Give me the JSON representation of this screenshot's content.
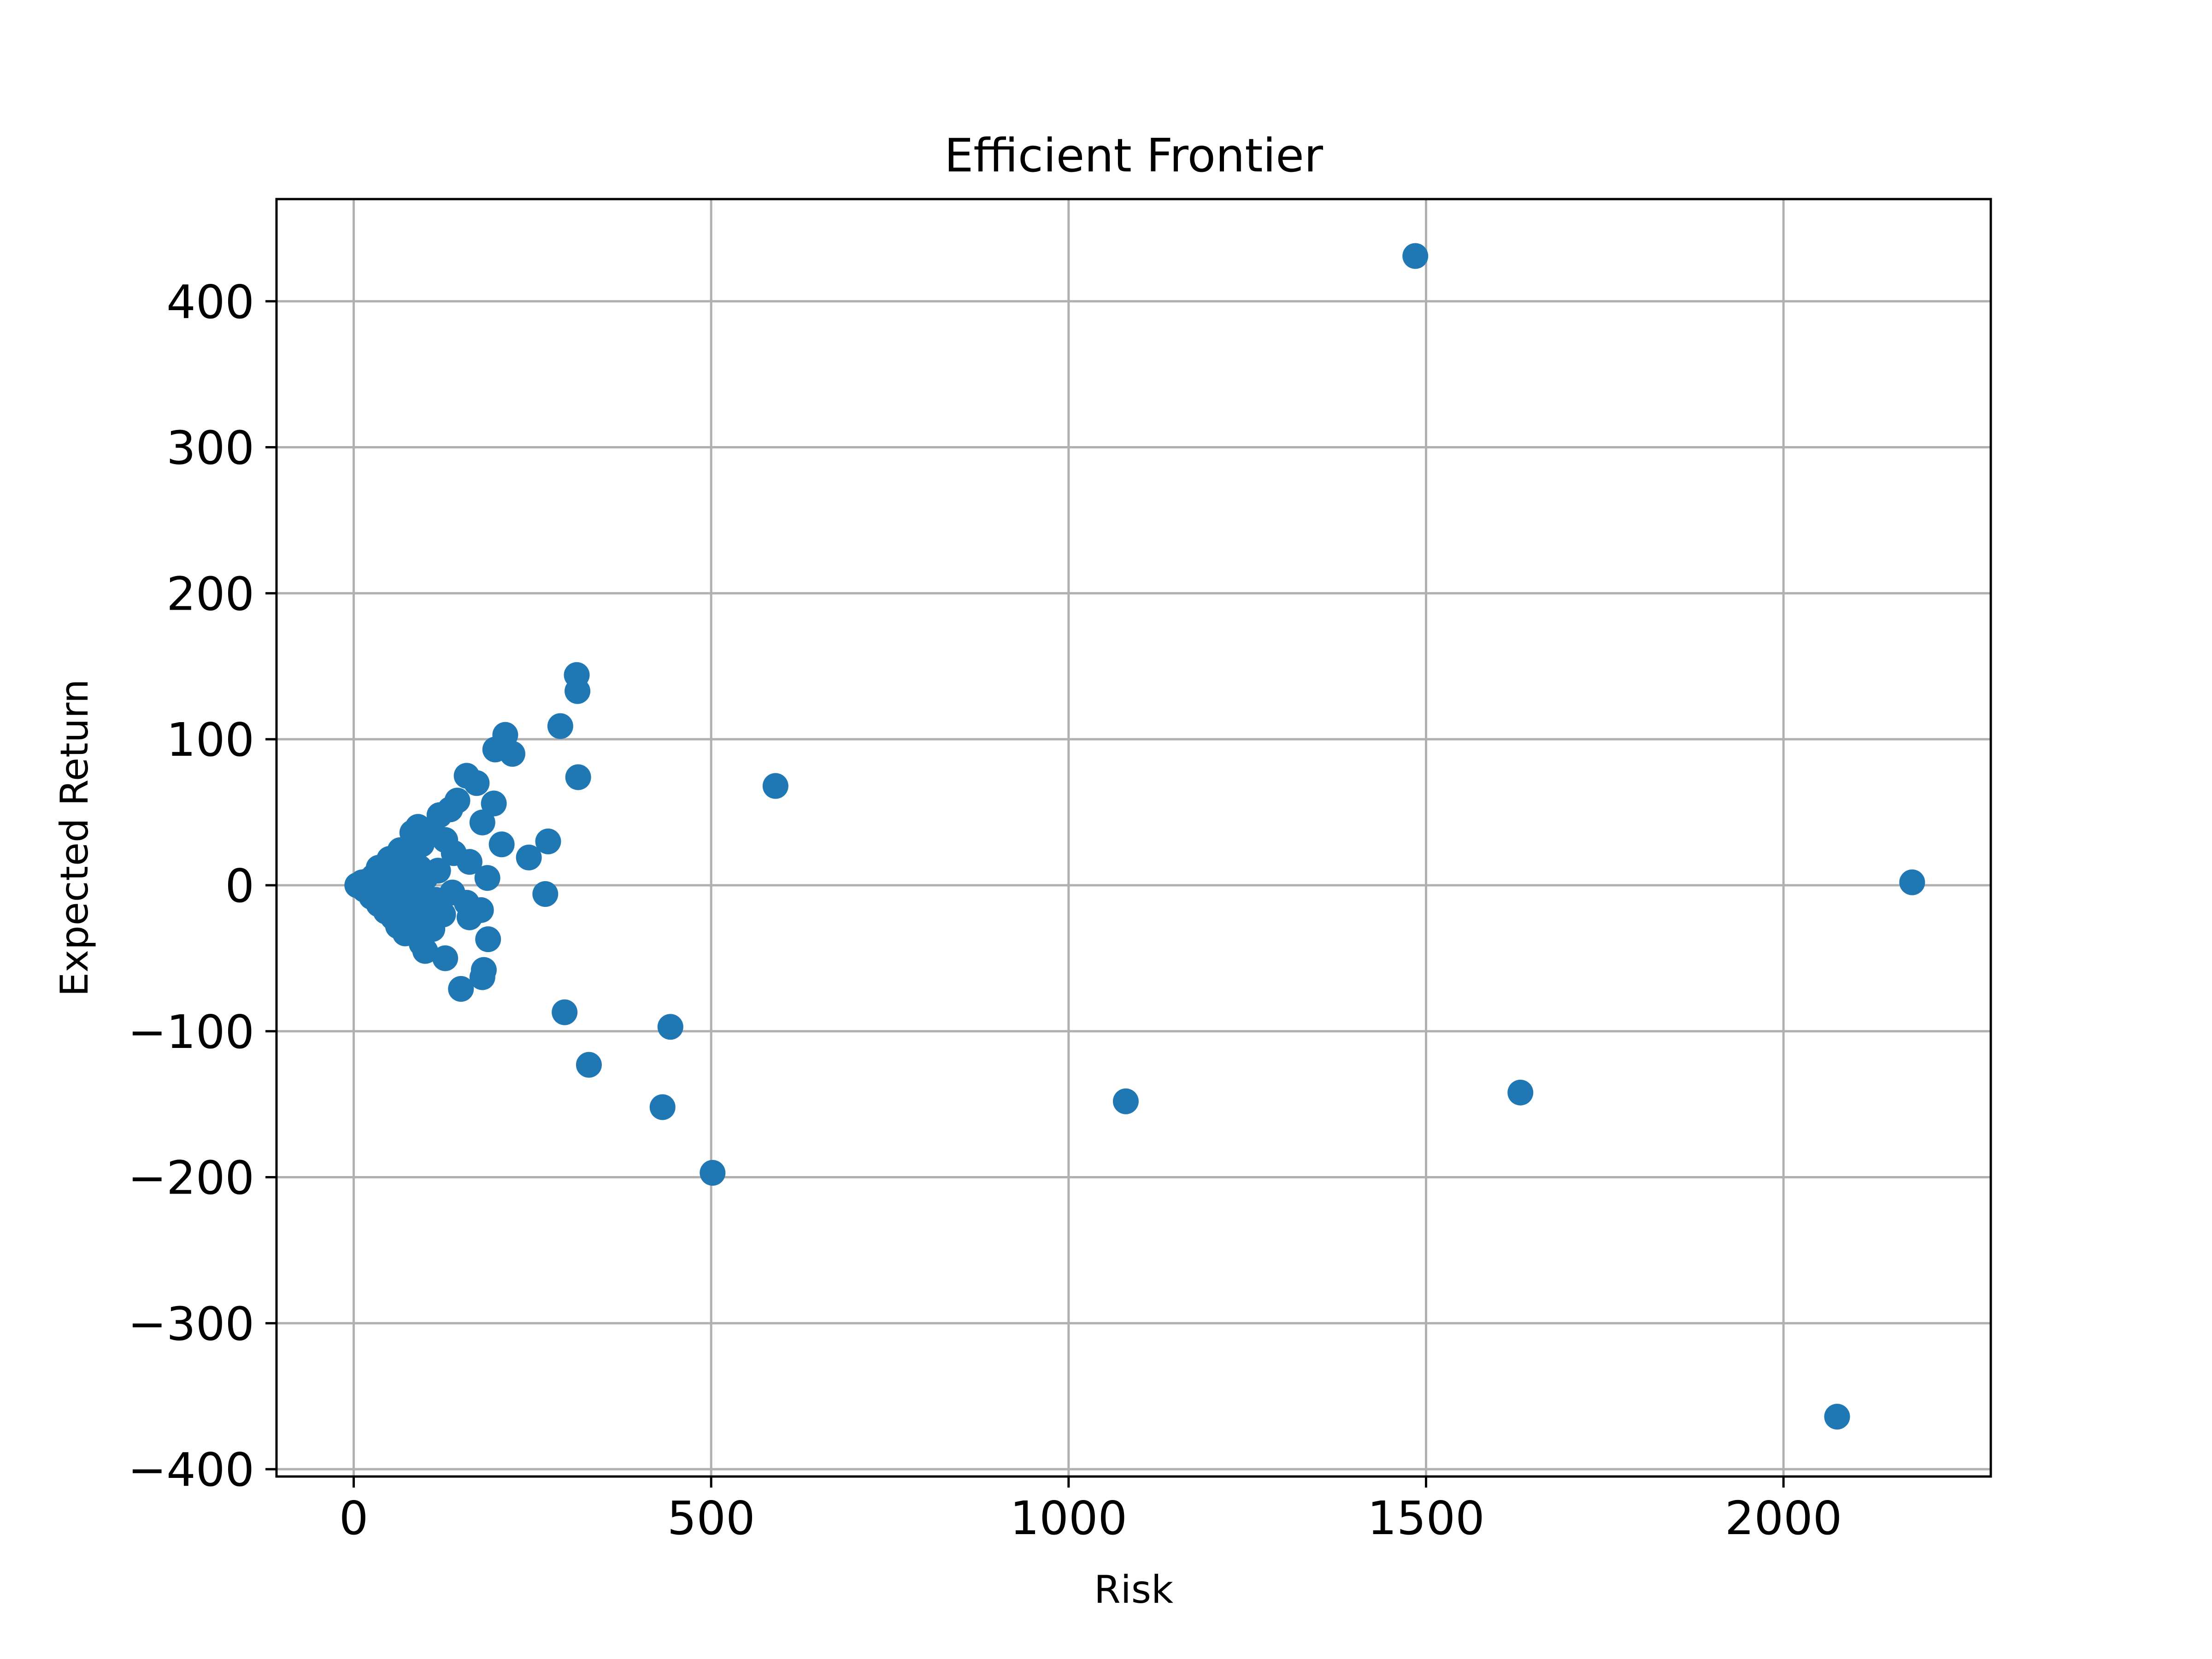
{
  "chart_data": {
    "type": "scatter",
    "title": "Efficient Frontier",
    "xlabel": "Risk",
    "ylabel": "Expected Return",
    "xlim": [
      -108,
      2290
    ],
    "ylim": [
      -405,
      470
    ],
    "xticks": [
      0,
      500,
      1000,
      1500,
      2000
    ],
    "yticks": [
      -400,
      -300,
      -200,
      -100,
      0,
      100,
      200,
      300,
      400
    ],
    "xtick_labels": [
      "0",
      "500",
      "1000",
      "1500",
      "2000"
    ],
    "ytick_labels": [
      "−400",
      "−300",
      "−200",
      "−100",
      "0",
      "100",
      "200",
      "300",
      "400"
    ],
    "grid": true,
    "marker_color": "#1f77b4",
    "points": [
      {
        "x": 1485,
        "y": 431
      },
      {
        "x": 2180,
        "y": 2
      },
      {
        "x": 2075,
        "y": -364
      },
      {
        "x": 1632,
        "y": -142
      },
      {
        "x": 1080,
        "y": -148
      },
      {
        "x": 590,
        "y": 68
      },
      {
        "x": 502,
        "y": -197
      },
      {
        "x": 443,
        "y": -97
      },
      {
        "x": 432,
        "y": -152
      },
      {
        "x": 329,
        "y": -123
      },
      {
        "x": 295,
        "y": -87
      },
      {
        "x": 312,
        "y": 144
      },
      {
        "x": 313,
        "y": 133
      },
      {
        "x": 314,
        "y": 74
      },
      {
        "x": 289,
        "y": 109
      },
      {
        "x": 272,
        "y": 30
      },
      {
        "x": 268,
        "y": -6
      },
      {
        "x": 245,
        "y": 19
      },
      {
        "x": 212,
        "y": 103
      },
      {
        "x": 222,
        "y": 90
      },
      {
        "x": 198,
        "y": 93
      },
      {
        "x": 196,
        "y": 56
      },
      {
        "x": 207,
        "y": 28
      },
      {
        "x": 180,
        "y": 43
      },
      {
        "x": 187,
        "y": 5
      },
      {
        "x": 172,
        "y": 70
      },
      {
        "x": 158,
        "y": 75
      },
      {
        "x": 162,
        "y": 16
      },
      {
        "x": 145,
        "y": 58
      },
      {
        "x": 135,
        "y": 52
      },
      {
        "x": 120,
        "y": 48
      },
      {
        "x": 128,
        "y": 31
      },
      {
        "x": 140,
        "y": 22
      },
      {
        "x": 118,
        "y": 10
      },
      {
        "x": 105,
        "y": 35
      },
      {
        "x": 95,
        "y": 28
      },
      {
        "x": 90,
        "y": 40
      },
      {
        "x": 82,
        "y": 36
      },
      {
        "x": 75,
        "y": 20
      },
      {
        "x": 65,
        "y": 24
      },
      {
        "x": 58,
        "y": 14
      },
      {
        "x": 50,
        "y": 18
      },
      {
        "x": 42,
        "y": 10
      },
      {
        "x": 35,
        "y": 12
      },
      {
        "x": 28,
        "y": 6
      },
      {
        "x": 20,
        "y": 3
      },
      {
        "x": 12,
        "y": 2
      },
      {
        "x": 5,
        "y": 0
      },
      {
        "x": 15,
        "y": -3
      },
      {
        "x": 25,
        "y": -8
      },
      {
        "x": 35,
        "y": -13
      },
      {
        "x": 45,
        "y": -18
      },
      {
        "x": 55,
        "y": -22
      },
      {
        "x": 62,
        "y": -28
      },
      {
        "x": 72,
        "y": -33
      },
      {
        "x": 80,
        "y": -25
      },
      {
        "x": 88,
        "y": -15
      },
      {
        "x": 95,
        "y": -40
      },
      {
        "x": 100,
        "y": -45
      },
      {
        "x": 110,
        "y": -30
      },
      {
        "x": 115,
        "y": -10
      },
      {
        "x": 125,
        "y": -20
      },
      {
        "x": 128,
        "y": -50
      },
      {
        "x": 138,
        "y": -5
      },
      {
        "x": 150,
        "y": -71
      },
      {
        "x": 158,
        "y": -12
      },
      {
        "x": 162,
        "y": -22
      },
      {
        "x": 178,
        "y": -17
      },
      {
        "x": 180,
        "y": -63
      },
      {
        "x": 182,
        "y": -58
      },
      {
        "x": 188,
        "y": -37
      },
      {
        "x": 40,
        "y": 2
      },
      {
        "x": 60,
        "y": -6
      },
      {
        "x": 70,
        "y": 8
      },
      {
        "x": 85,
        "y": -2
      },
      {
        "x": 92,
        "y": 12
      },
      {
        "x": 100,
        "y": 5
      },
      {
        "x": 108,
        "y": -20
      },
      {
        "x": 78,
        "y": -12
      },
      {
        "x": 66,
        "y": 4
      },
      {
        "x": 52,
        "y": -10
      }
    ]
  }
}
